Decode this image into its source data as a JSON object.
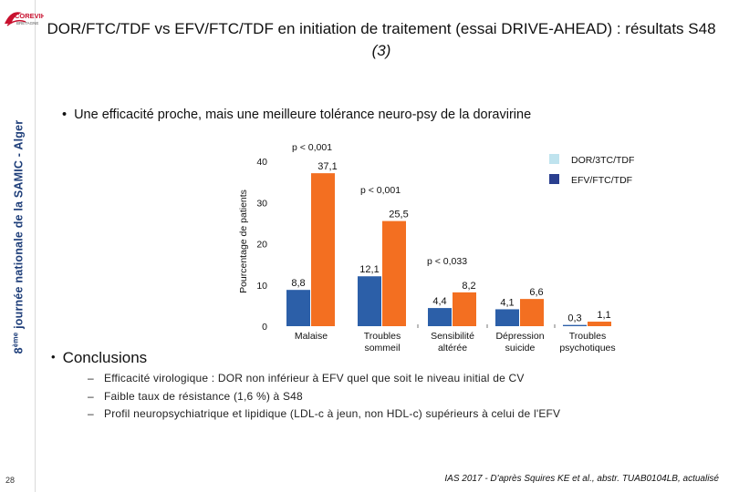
{
  "sidebar": {
    "logo_text": "COREVIH",
    "logo_subtext": "BRETAGNE",
    "vertical_label_ordinal": "8",
    "vertical_label_ordinal_suffix": "ème",
    "vertical_label_text": "journée nationale de la SAMIC - Alger",
    "page_number": "28"
  },
  "header": {
    "title": "DOR/FTC/TDF vs EFV/FTC/TDF en initiation de traitement (essai DRIVE-AHEAD) : résultats S48",
    "title_ref": "(3)"
  },
  "subtitle": {
    "bullet": "•",
    "text": "Une efficacité proche, mais une meilleure tolérance neuro-psy de la doravirine"
  },
  "chart_data": {
    "type": "bar",
    "ylabel": "Pourcentage de patients",
    "ylim": [
      0,
      40
    ],
    "yticks": [
      "0",
      "10",
      "20",
      "30",
      "40"
    ],
    "categories": [
      [
        "Malaise"
      ],
      [
        "Troubles",
        "sommeil"
      ],
      [
        "Sensibilité",
        "altérée"
      ],
      [
        "Dépression",
        "suicide"
      ],
      [
        "Troubles",
        "psychotiques"
      ]
    ],
    "series": [
      {
        "name": "DOR/3TC/TDF",
        "color": "#2c5fa8",
        "values": [
          8.8,
          12.1,
          4.4,
          4.1,
          0.3
        ],
        "labels": [
          "8,8",
          "12,1",
          "4,4",
          "4,1",
          "0,3"
        ]
      },
      {
        "name": "EFV/FTC/TDF",
        "color": "#f36f21",
        "values": [
          37.1,
          25.5,
          8.2,
          6.6,
          1.1
        ],
        "labels": [
          "37,1",
          "25,5",
          "8,2",
          "6,6",
          "1,1"
        ]
      }
    ],
    "legend": [
      {
        "label": "DOR/3TC/TDF",
        "color": "#bfe3ee"
      },
      {
        "label": "EFV/FTC/TDF",
        "color": "#2a3f8f"
      }
    ],
    "legend_position": "top-right",
    "pvalues": [
      {
        "category": 0,
        "text": "p < 0,001"
      },
      {
        "category": 1,
        "text": "p < 0,001"
      },
      {
        "category": 2,
        "text": "p < 0,033"
      }
    ]
  },
  "conclusions": {
    "bullet": "•",
    "title": "Conclusions",
    "dash": "–",
    "items": [
      "Efficacité virologique : DOR non inférieur à EFV quel que soit le niveau initial de CV",
      "Faible taux de résistance (1,6 %) à S48",
      "Profil neuropsychiatrique et lipidique (LDL-c à jeun, non HDL-c) supérieurs à celui de l'EFV"
    ]
  },
  "footer": {
    "reference": "IAS 2017 - D'après Squires KE et al., abstr. TUAB0104LB, actualisé"
  }
}
